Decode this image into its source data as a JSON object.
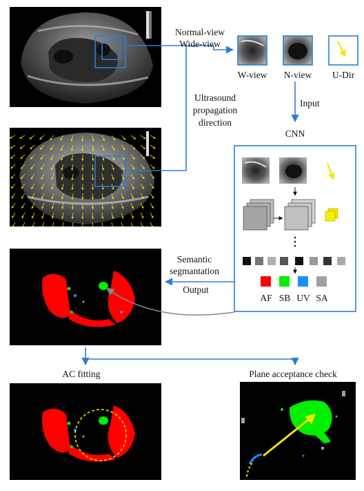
{
  "labels": {
    "view_line1": "Normal-view",
    "view_line2": "Wide-view",
    "propagation_line1": "Ultrasound",
    "propagation_line2": "propagation",
    "propagation_line3": "direction",
    "w_view": "W-view",
    "n_view": "N-view",
    "u_dir": "U-Dir",
    "input": "Input",
    "cnn": "CNN",
    "seg_line1": "Semantic",
    "seg_line2": "segmantation",
    "output": "Output",
    "ac_fitting": "AC fitting",
    "plane_check": "Plane acceptance check"
  },
  "legend": [
    {
      "label": "AF",
      "color": "#ff0000"
    },
    {
      "label": "SB",
      "color": "#00ee00"
    },
    {
      "label": "UV",
      "color": "#1a8fff"
    },
    {
      "label": "SA",
      "color": "#a0a0a0"
    }
  ],
  "colors": {
    "connector": "#2a7fd4",
    "direction_arrow": "#f2e600",
    "af": "#ff0000",
    "sb": "#00ee00",
    "uv": "#1a8fff",
    "sa": "#a0a0a0"
  }
}
